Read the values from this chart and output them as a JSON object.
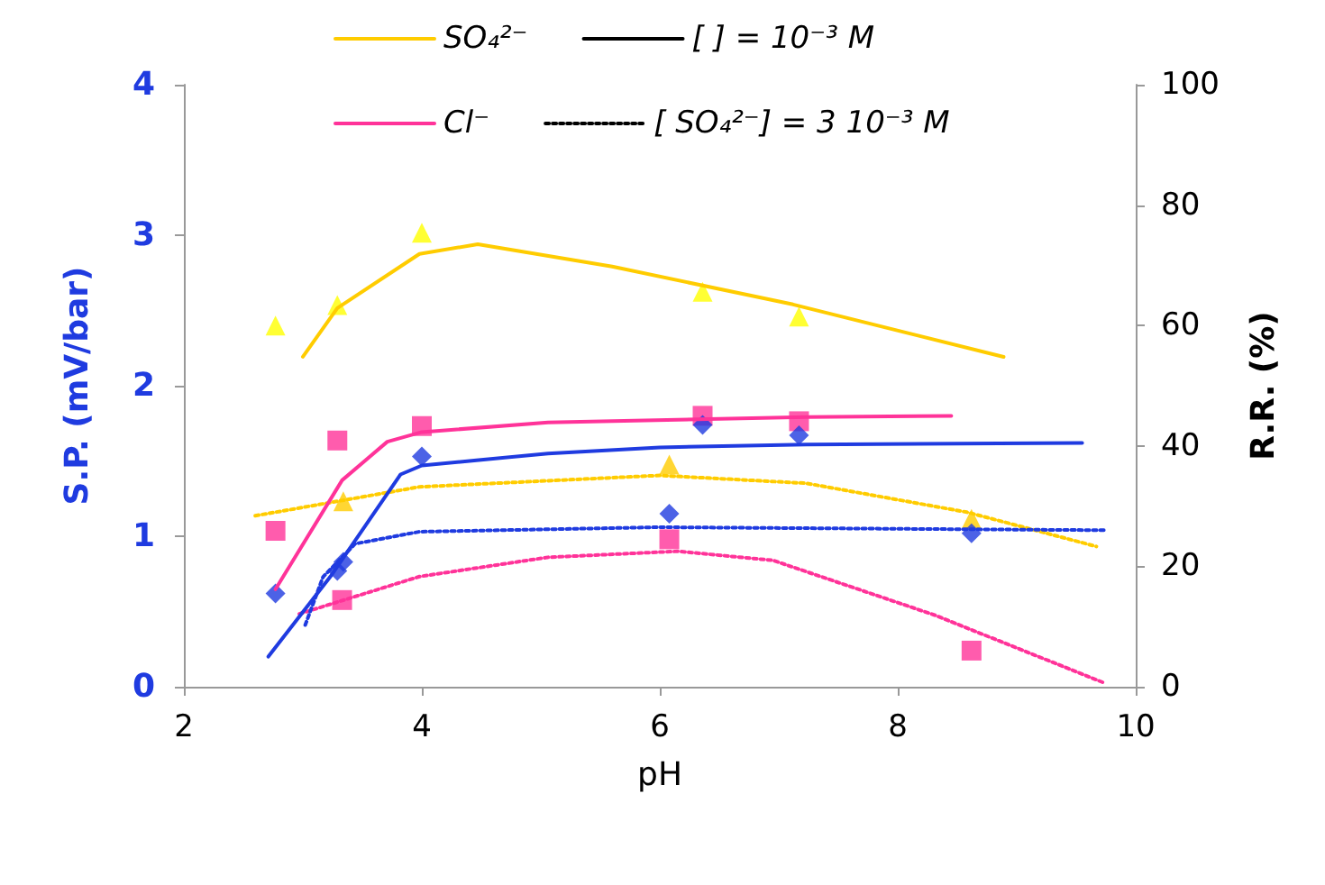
{
  "chart_data": {
    "type": "line",
    "xlabel": "pH",
    "ylabel": "S.P. (mV/bar)",
    "y2label": "R.R. (%)",
    "xlim": [
      2,
      10
    ],
    "xticks": [
      2,
      4,
      6,
      8,
      10
    ],
    "ylim": [
      0,
      4
    ],
    "yticks": [
      0,
      1,
      2,
      3,
      4
    ],
    "y2lim": [
      0,
      100
    ],
    "y2ticks": [
      0,
      20,
      40,
      60,
      80,
      100
    ],
    "grid": false,
    "legend": "top",
    "series": [
      {
        "name": "SO₄²⁻",
        "type": "line",
        "axis": "y2",
        "color": "#ffcc00",
        "marker": "none",
        "line_style": "solid",
        "x": [
          3.0,
          3.29,
          3.98,
          4.47,
          5.6,
          7.12,
          8.89
        ],
        "values": [
          54.8,
          62.9,
          71.9,
          73.5,
          69.8,
          63.5,
          54.8
        ]
      },
      {
        "name": "Cl⁻",
        "type": "line",
        "axis": "y2",
        "color": "#ff3399",
        "marker": "none",
        "line_style": "solid",
        "x": [
          2.77,
          3.33,
          3.71,
          4.0,
          5.06,
          7.23,
          8.45
        ],
        "values": [
          16.2,
          34.3,
          40.7,
          42.3,
          43.9,
          44.8,
          45.0
        ]
      },
      {
        "name": "[ ] = 10⁻³ M",
        "color": "#000000",
        "marker": "none",
        "line_style": "solid"
      },
      {
        "name": "[ SO₄²⁻] = 3 10⁻³ M",
        "color": "#000000",
        "marker": "none",
        "line_style": "dotted"
      },
      {
        "type": "line",
        "color": "#1f3be0",
        "marker": "none",
        "line_style": "solid",
        "x": [
          2.71,
          3.23,
          3.82,
          4.0,
          5.06,
          6.0,
          7.23,
          9.55
        ],
        "values": [
          0.2,
          0.73,
          1.41,
          1.47,
          1.55,
          1.59,
          1.61,
          1.62
        ]
      },
      {
        "type": "line",
        "color": "#1f3be0",
        "marker": "none",
        "line_style": "dotted",
        "x": [
          3.02,
          3.17,
          3.44,
          3.98,
          6.0,
          9.74
        ],
        "values": [
          0.41,
          0.73,
          0.95,
          1.03,
          1.06,
          1.04
        ]
      },
      {
        "type": "line",
        "axis": "y2",
        "color": "#ffcc00",
        "marker": "none",
        "line_style": "dotted",
        "x": [
          2.6,
          3.98,
          6.0,
          7.23,
          8.58,
          9.67
        ],
        "values": [
          28.4,
          33.2,
          35.1,
          33.8,
          29.0,
          23.3
        ]
      },
      {
        "type": "line",
        "axis": "y2",
        "color": "#ff3399",
        "marker": "none",
        "line_style": "dotted",
        "x": [
          2.97,
          3.98,
          5.06,
          6.15,
          6.95,
          8.31,
          9.74
        ],
        "values": [
          12.1,
          18.3,
          21.5,
          22.5,
          21.0,
          11.9,
          0.6
        ]
      },
      {
        "type": "scatter",
        "color": "#1f3be0",
        "marker": "diamond",
        "x": [
          2.77,
          3.29,
          4.0,
          6.36,
          7.17
        ],
        "values": [
          0.62,
          0.77,
          1.53,
          1.74,
          1.67
        ]
      },
      {
        "type": "scatter",
        "color": "#1f3be0",
        "marker": "diamond",
        "x": [
          3.34,
          6.08,
          8.62
        ],
        "values": [
          0.83,
          1.15,
          1.02
        ]
      },
      {
        "type": "scatter",
        "axis": "y2",
        "color": "#ffff00",
        "marker": "triangle",
        "x": [
          2.77,
          3.29,
          4.0,
          6.36,
          7.17
        ],
        "values": [
          60,
          63.4,
          75.4,
          65.6,
          61.5
        ]
      },
      {
        "type": "scatter",
        "axis": "y2",
        "color": "#ffcc00",
        "marker": "triangle",
        "x": [
          3.34,
          6.08,
          8.62
        ],
        "values": [
          30.8,
          36.9,
          27.9
        ]
      },
      {
        "type": "scatter",
        "axis": "y2",
        "color": "#ff3399",
        "marker": "square",
        "x": [
          2.77,
          3.29,
          4.0,
          6.36,
          7.17
        ],
        "values": [
          25.9,
          40.9,
          43.3,
          45.0,
          44.1
        ]
      },
      {
        "type": "scatter",
        "axis": "y2",
        "color": "#ff3399",
        "marker": "square",
        "x": [
          3.33,
          6.08,
          8.62
        ],
        "values": [
          14.4,
          24.5,
          6.0
        ]
      }
    ]
  }
}
